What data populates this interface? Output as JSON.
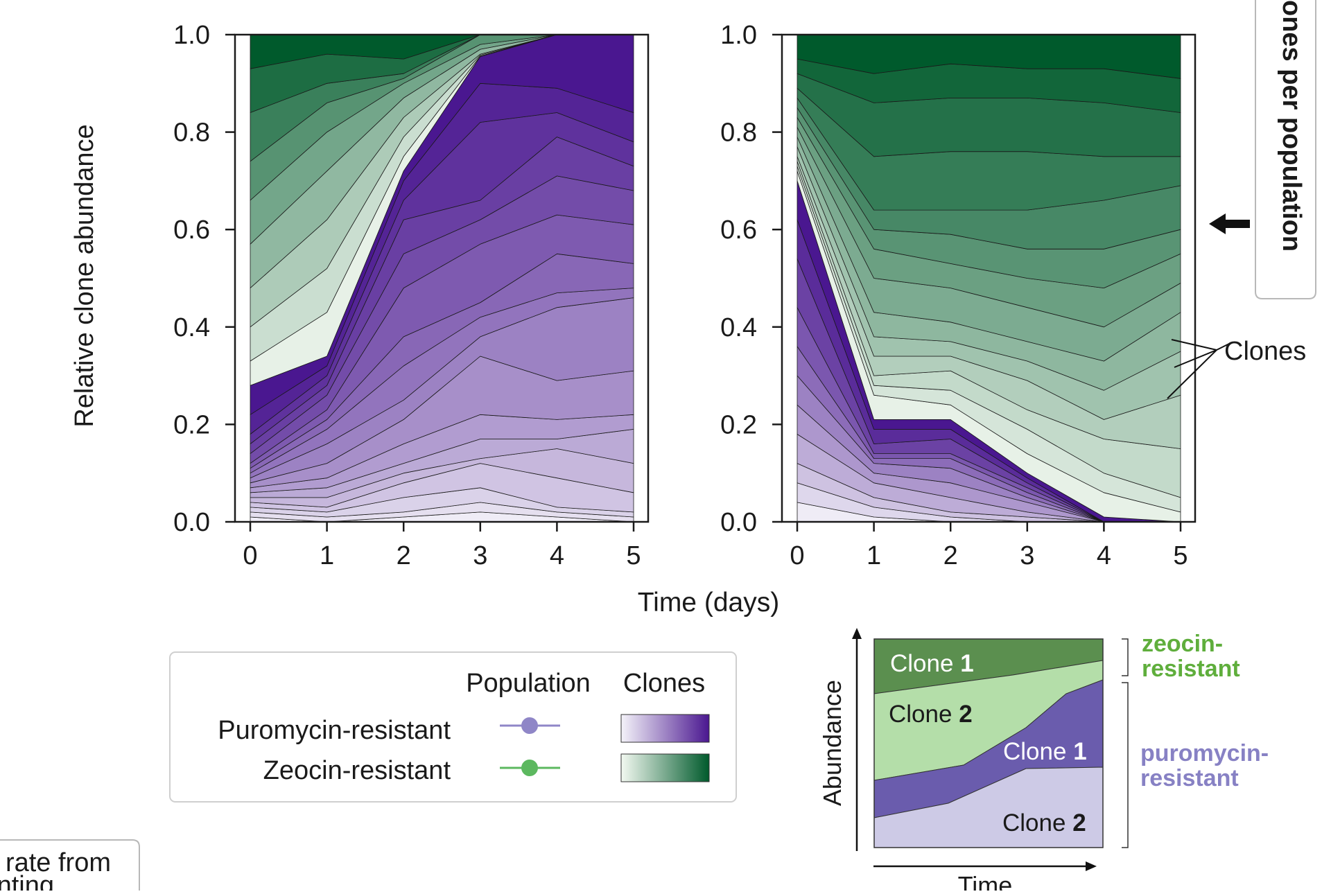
{
  "chart_data": [
    {
      "type": "area",
      "panel": "left",
      "xlabel": "Time (days)",
      "ylabel": "Relative clone abundance",
      "x": [
        0,
        1,
        2,
        3,
        4,
        5
      ],
      "xlim": [
        0,
        5
      ],
      "ylim": [
        0,
        1
      ],
      "xticks": [
        "0",
        "1",
        "2",
        "3",
        "4",
        "5"
      ],
      "yticks": [
        "0.0",
        "0.2",
        "0.4",
        "0.6",
        "0.8",
        "1.0"
      ],
      "boundaries": [
        {
          "group": "puromycin",
          "y": [
            0.01,
            0.0,
            0.01,
            0.02,
            0.01,
            0.0
          ]
        },
        {
          "group": "puromycin",
          "y": [
            0.02,
            0.01,
            0.02,
            0.04,
            0.02,
            0.01
          ]
        },
        {
          "group": "puromycin",
          "y": [
            0.03,
            0.02,
            0.05,
            0.07,
            0.03,
            0.02
          ]
        },
        {
          "group": "puromycin",
          "y": [
            0.04,
            0.03,
            0.08,
            0.12,
            0.09,
            0.06
          ]
        },
        {
          "group": "puromycin",
          "y": [
            0.05,
            0.05,
            0.1,
            0.13,
            0.15,
            0.12
          ]
        },
        {
          "group": "puromycin",
          "y": [
            0.06,
            0.07,
            0.12,
            0.17,
            0.17,
            0.19
          ]
        },
        {
          "group": "puromycin",
          "y": [
            0.07,
            0.09,
            0.16,
            0.22,
            0.21,
            0.22
          ]
        },
        {
          "group": "puromycin",
          "y": [
            0.08,
            0.12,
            0.21,
            0.34,
            0.29,
            0.31
          ]
        },
        {
          "group": "puromycin",
          "y": [
            0.09,
            0.16,
            0.25,
            0.38,
            0.44,
            0.46
          ]
        },
        {
          "group": "puromycin",
          "y": [
            0.1,
            0.19,
            0.32,
            0.42,
            0.47,
            0.48
          ]
        },
        {
          "group": "puromycin",
          "y": [
            0.11,
            0.21,
            0.38,
            0.45,
            0.55,
            0.53
          ]
        },
        {
          "group": "puromycin",
          "y": [
            0.12,
            0.23,
            0.48,
            0.57,
            0.63,
            0.61
          ]
        },
        {
          "group": "puromycin",
          "y": [
            0.14,
            0.26,
            0.55,
            0.62,
            0.71,
            0.68
          ]
        },
        {
          "group": "puromycin",
          "y": [
            0.16,
            0.28,
            0.62,
            0.66,
            0.79,
            0.73
          ]
        },
        {
          "group": "puromycin",
          "y": [
            0.18,
            0.3,
            0.66,
            0.82,
            0.84,
            0.78
          ]
        },
        {
          "group": "puromycin",
          "y": [
            0.22,
            0.32,
            0.7,
            0.9,
            0.89,
            0.84
          ]
        },
        {
          "group": "puromycin",
          "y": [
            0.28,
            0.34,
            0.72,
            0.955,
            1.0,
            1.0
          ]
        },
        {
          "group": "zeocin",
          "y": [
            0.33,
            0.43,
            0.75,
            0.956,
            1.0,
            1.0
          ]
        },
        {
          "group": "zeocin",
          "y": [
            0.4,
            0.52,
            0.79,
            0.958,
            1.0,
            1.0
          ]
        },
        {
          "group": "zeocin",
          "y": [
            0.48,
            0.62,
            0.83,
            0.96,
            1.0,
            1.0
          ]
        },
        {
          "group": "zeocin",
          "y": [
            0.57,
            0.72,
            0.87,
            0.97,
            1.0,
            1.0
          ]
        },
        {
          "group": "zeocin",
          "y": [
            0.66,
            0.8,
            0.9,
            0.98,
            1.0,
            1.0
          ]
        },
        {
          "group": "zeocin",
          "y": [
            0.74,
            0.86,
            0.91,
            1.0,
            1.0,
            1.0
          ]
        },
        {
          "group": "zeocin",
          "y": [
            0.84,
            0.9,
            0.92,
            1.0,
            1.0,
            1.0
          ]
        },
        {
          "group": "zeocin",
          "y": [
            0.93,
            0.96,
            0.95,
            1.0,
            1.0,
            1.0
          ]
        },
        {
          "group": "zeocin",
          "y": [
            1.0,
            1.0,
            1.0,
            1.0,
            1.0,
            1.0
          ]
        }
      ]
    },
    {
      "type": "area",
      "panel": "right",
      "xlabel": "Time (days)",
      "ylabel": "Relative clone abundance",
      "x": [
        0,
        1,
        2,
        3,
        4,
        5
      ],
      "xlim": [
        0,
        5
      ],
      "ylim": [
        0,
        1
      ],
      "xticks": [
        "0",
        "1",
        "2",
        "3",
        "4",
        "5"
      ],
      "yticks": [
        "0.0",
        "0.2",
        "0.4",
        "0.6",
        "0.8",
        "1.0"
      ],
      "annotation": "Clones",
      "side_label": "ones per population",
      "boundaries": [
        {
          "group": "puromycin",
          "y": [
            0.04,
            0.01,
            0.0,
            0.0,
            0.0,
            0.0
          ]
        },
        {
          "group": "puromycin",
          "y": [
            0.08,
            0.03,
            0.01,
            0.0,
            0.0,
            0.0
          ]
        },
        {
          "group": "puromycin",
          "y": [
            0.12,
            0.05,
            0.02,
            0.01,
            0.0,
            0.0
          ]
        },
        {
          "group": "puromycin",
          "y": [
            0.18,
            0.08,
            0.05,
            0.02,
            0.0,
            0.0
          ]
        },
        {
          "group": "puromycin",
          "y": [
            0.24,
            0.1,
            0.08,
            0.04,
            0.0,
            0.0
          ]
        },
        {
          "group": "puromycin",
          "y": [
            0.3,
            0.12,
            0.11,
            0.05,
            0.0,
            0.0
          ]
        },
        {
          "group": "puromycin",
          "y": [
            0.36,
            0.13,
            0.13,
            0.06,
            0.0,
            0.0
          ]
        },
        {
          "group": "puromycin",
          "y": [
            0.44,
            0.14,
            0.14,
            0.07,
            0.0,
            0.0
          ]
        },
        {
          "group": "puromycin",
          "y": [
            0.54,
            0.16,
            0.17,
            0.08,
            0.0,
            0.0
          ]
        },
        {
          "group": "puromycin",
          "y": [
            0.62,
            0.19,
            0.19,
            0.09,
            0.0,
            0.0
          ]
        },
        {
          "group": "puromycin",
          "y": [
            0.7,
            0.21,
            0.21,
            0.1,
            0.01,
            0.0
          ]
        },
        {
          "group": "zeocin",
          "y": [
            0.72,
            0.26,
            0.24,
            0.14,
            0.06,
            0.02
          ]
        },
        {
          "group": "zeocin",
          "y": [
            0.73,
            0.28,
            0.27,
            0.19,
            0.1,
            0.05
          ]
        },
        {
          "group": "zeocin",
          "y": [
            0.74,
            0.3,
            0.31,
            0.23,
            0.17,
            0.15
          ]
        },
        {
          "group": "zeocin",
          "y": [
            0.75,
            0.34,
            0.34,
            0.29,
            0.21,
            0.26
          ]
        },
        {
          "group": "zeocin",
          "y": [
            0.77,
            0.38,
            0.37,
            0.33,
            0.27,
            0.35
          ]
        },
        {
          "group": "zeocin",
          "y": [
            0.79,
            0.43,
            0.41,
            0.37,
            0.33,
            0.43
          ]
        },
        {
          "group": "zeocin",
          "y": [
            0.81,
            0.5,
            0.48,
            0.44,
            0.4,
            0.49
          ]
        },
        {
          "group": "zeocin",
          "y": [
            0.83,
            0.56,
            0.53,
            0.5,
            0.48,
            0.55
          ]
        },
        {
          "group": "zeocin",
          "y": [
            0.85,
            0.6,
            0.59,
            0.56,
            0.56,
            0.6
          ]
        },
        {
          "group": "zeocin",
          "y": [
            0.87,
            0.64,
            0.64,
            0.64,
            0.66,
            0.69
          ]
        },
        {
          "group": "zeocin",
          "y": [
            0.89,
            0.75,
            0.76,
            0.76,
            0.75,
            0.75
          ]
        },
        {
          "group": "zeocin",
          "y": [
            0.92,
            0.86,
            0.87,
            0.87,
            0.86,
            0.84
          ]
        },
        {
          "group": "zeocin",
          "y": [
            0.95,
            0.92,
            0.94,
            0.93,
            0.93,
            0.91
          ]
        },
        {
          "group": "zeocin",
          "y": [
            1.0,
            1.0,
            1.0,
            1.0,
            1.0,
            1.0
          ]
        }
      ]
    }
  ],
  "legend": {
    "header_population": "Population",
    "header_clones": "Clones",
    "row1": "Puromycin-resistant",
    "row2": "Zeocin-resistant"
  },
  "schematic": {
    "ylabel": "Abundance",
    "xlabel": "Time",
    "clone_word": "Clone",
    "clone1_num": "1",
    "clone2_num": "2",
    "zeocin_label_1": "zeocin-",
    "zeocin_label_2": "resistant",
    "puro_label_1": "puromycin-",
    "puro_label_2": "resistant"
  },
  "fragments": {
    "bottom_left_1": "rate from",
    "bottom_left_2": "nting"
  },
  "colors": {
    "purple_light": "#f4f3f9",
    "purple_dark": "#4a1790",
    "green_light": "#f3f9f1",
    "green_dark": "#005a2c",
    "marker_purple": "#8f86c7",
    "marker_green": "#5cb85f",
    "label_green": "#5fae3c",
    "label_purple": "#8781c4",
    "schem_dark_green": "#5b8f4f",
    "schem_light_green": "#b4dea9",
    "schem_purple": "#6a5cad",
    "schem_lavender": "#cdcae6"
  }
}
